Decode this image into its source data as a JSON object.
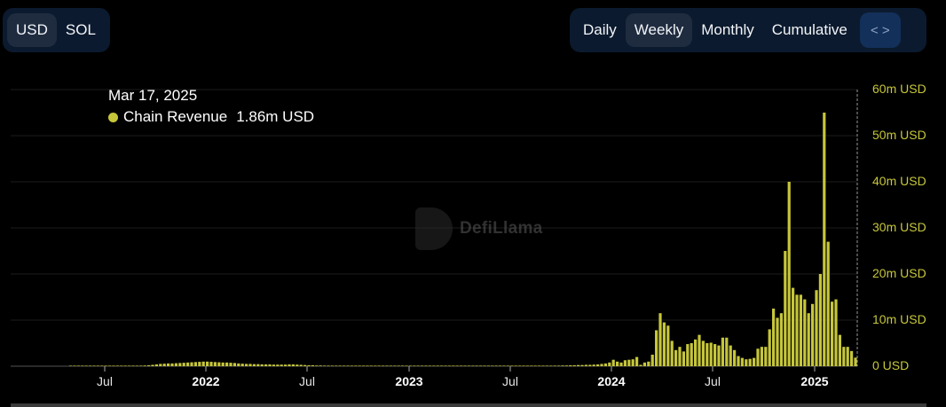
{
  "currency_toggle": {
    "options": [
      {
        "label": "USD",
        "active": true
      },
      {
        "label": "SOL",
        "active": false
      }
    ]
  },
  "period_toggle": {
    "options": [
      {
        "label": "Daily",
        "active": false
      },
      {
        "label": "Weekly",
        "active": true
      },
      {
        "label": "Monthly",
        "active": false
      },
      {
        "label": "Cumulative",
        "active": false
      }
    ],
    "embed_icon": "code-brackets-icon",
    "embed_glyph": "< >"
  },
  "tooltip": {
    "date": "Mar 17, 2025",
    "series_name": "Chain Revenue",
    "value": "1.86m USD",
    "dot_color": "#c6c63a"
  },
  "watermark": {
    "text": "DefiLlama"
  },
  "colors": {
    "bar": "#c6c63a",
    "bar_edge": "#8a8a1e",
    "grid": "#1c1c1c",
    "axis_label": "#c6c63a",
    "background": "#000000"
  },
  "chart_data": {
    "type": "bar",
    "title": "",
    "series": [
      {
        "name": "Chain Revenue",
        "unit": "USD (millions)"
      }
    ],
    "xlabel": "",
    "ylabel": "",
    "ylim": [
      0,
      60
    ],
    "yticks": [
      "0 USD",
      "10m USD",
      "20m USD",
      "30m USD",
      "40m USD",
      "50m USD",
      "60m USD"
    ],
    "xticks": [
      "Jul",
      "2022",
      "Jul",
      "2023",
      "Jul",
      "2024",
      "Jul",
      "2025"
    ],
    "grid": true,
    "legend_position": "tooltip-top-left",
    "highlighted_point": {
      "date": "Mar 17, 2025",
      "value": 1.86
    },
    "frequency": "weekly",
    "start_date": "2021-04-05",
    "end_date": "2025-03-17",
    "values": [
      0.02,
      0.02,
      0.03,
      0.03,
      0.03,
      0.04,
      0.04,
      0.05,
      0.05,
      0.06,
      0.06,
      0.06,
      0.07,
      0.07,
      0.08,
      0.08,
      0.09,
      0.1,
      0.12,
      0.15,
      0.2,
      0.3,
      0.4,
      0.5,
      0.55,
      0.6,
      0.6,
      0.65,
      0.7,
      0.75,
      0.8,
      0.85,
      0.9,
      0.95,
      1.0,
      1.0,
      0.95,
      0.9,
      0.85,
      0.8,
      0.8,
      0.75,
      0.7,
      0.6,
      0.55,
      0.5,
      0.5,
      0.45,
      0.45,
      0.4,
      0.4,
      0.4,
      0.35,
      0.35,
      0.35,
      0.35,
      0.4,
      0.4,
      0.35,
      0.3,
      0.25,
      0.2,
      0.2,
      0.15,
      0.15,
      0.12,
      0.12,
      0.1,
      0.1,
      0.1,
      0.1,
      0.1,
      0.1,
      0.1,
      0.1,
      0.1,
      0.1,
      0.1,
      0.1,
      0.1,
      0.1,
      0.1,
      0.1,
      0.1,
      0.1,
      0.1,
      0.1,
      0.1,
      0.1,
      0.08,
      0.08,
      0.08,
      0.08,
      0.08,
      0.08,
      0.08,
      0.08,
      0.08,
      0.08,
      0.08,
      0.08,
      0.08,
      0.08,
      0.08,
      0.08,
      0.08,
      0.08,
      0.08,
      0.08,
      0.08,
      0.08,
      0.08,
      0.08,
      0.08,
      0.08,
      0.08,
      0.08,
      0.08,
      0.08,
      0.08,
      0.1,
      0.1,
      0.1,
      0.1,
      0.12,
      0.12,
      0.15,
      0.15,
      0.2,
      0.2,
      0.25,
      0.25,
      0.3,
      0.3,
      0.35,
      0.4,
      0.5,
      0.6,
      0.8,
      1.4,
      1.0,
      0.8,
      1.3,
      1.4,
      1.5,
      2.0,
      0.3,
      0.8,
      1.0,
      2.5,
      7.8,
      11.5,
      9.5,
      8.8,
      5.5,
      3.5,
      4.2,
      3.2,
      4.8,
      5.0,
      5.8,
      6.8,
      5.5,
      5.0,
      5.1,
      4.8,
      4.5,
      6.2,
      6.2,
      4.5,
      3.5,
      2.2,
      1.8,
      1.5,
      1.6,
      1.8,
      3.8,
      4.2,
      4.2,
      8.0,
      12.5,
      10.5,
      11.5,
      25.0,
      40.0,
      17.0,
      15.5,
      15.5,
      14.5,
      11.5,
      13.5,
      16.5,
      20.0,
      55.0,
      27.0,
      14.0,
      14.5,
      6.8,
      4.2,
      4.2,
      3.3,
      1.86
    ]
  }
}
